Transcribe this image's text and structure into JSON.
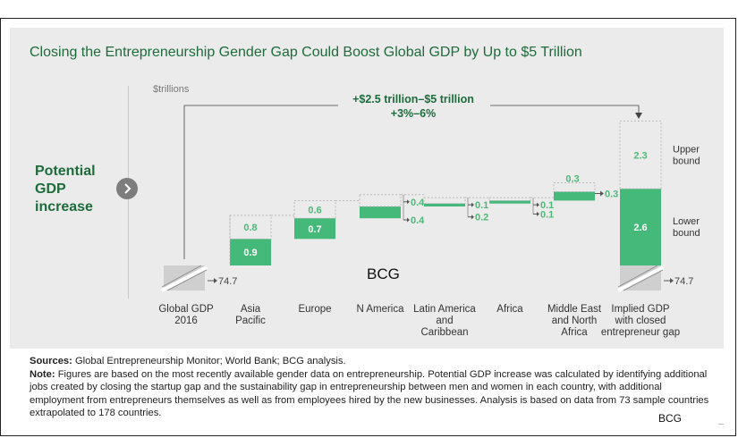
{
  "title": "Closing the Entrepreneurship Gender Gap Could Boost Global GDP by Up to $5 Trillion",
  "units": "$trillions",
  "potential_label": [
    "Potential",
    "GDP",
    "increase"
  ],
  "total_label_line1": "+$2.5 trillion–$5 trillion",
  "total_label_line2": "+3%–6%",
  "watermark_mid": "BCG",
  "watermark_corner": "BCG",
  "sources_label": "Sources:",
  "sources_text": " Global Entrepreneurship Monitor; World Bank; BCG analysis.",
  "note_label": "Note:",
  "note_text": " Figures are based on the most recently available gender data on entrepreneurship. Potential GDP increase was calculated by identifying additional jobs created by closing the startup gap and the sustainability gap in entrepreneurship between men and women in each country, with additional employment from entrepreneurs themselves as well as from employees hired by the new businesses. Analysis is based on data from 73 sample countries extrapolated to 178 countries.",
  "colors": {
    "title": "#1e6b3c",
    "lower": "#45b97a",
    "upper_label": "#4fb878",
    "base": "#cfcfcf",
    "dashed": "#b3b3b3"
  },
  "chart_data": {
    "type": "bar",
    "subtype": "waterfall",
    "ylabel": "$trillions",
    "categories": [
      [
        "Global GDP",
        "2016"
      ],
      [
        "Asia",
        "Pacific"
      ],
      [
        "Europe"
      ],
      [
        "N America"
      ],
      [
        "Latin America",
        "and",
        "Caribbean"
      ],
      [
        "Africa"
      ],
      [
        "Middle East",
        "and North",
        "Africa"
      ],
      [
        "Implied GDP",
        "with closed",
        "entrepreneur gap"
      ]
    ],
    "base_label": "74.7",
    "end_label": "74.7",
    "series": [
      {
        "name": "Lower bound",
        "values": [
          null,
          0.9,
          0.7,
          0.4,
          0.1,
          0.1,
          0.3,
          2.6
        ]
      },
      {
        "name": "Upper bound",
        "values": [
          null,
          0.8,
          0.6,
          0.4,
          0.2,
          0.1,
          0.3,
          2.3
        ]
      }
    ],
    "lower_labels": [
      "",
      "0.9",
      "0.7",
      "0.4",
      "0.1",
      "0.1",
      "0.3",
      "2.6"
    ],
    "upper_labels": [
      "",
      "0.8",
      "0.6",
      "0.4",
      "0.2",
      "0.1",
      "0.3",
      "2.3"
    ],
    "legend": {
      "upper": [
        "Upper",
        "bound"
      ],
      "lower": [
        "Lower",
        "bound"
      ]
    }
  }
}
